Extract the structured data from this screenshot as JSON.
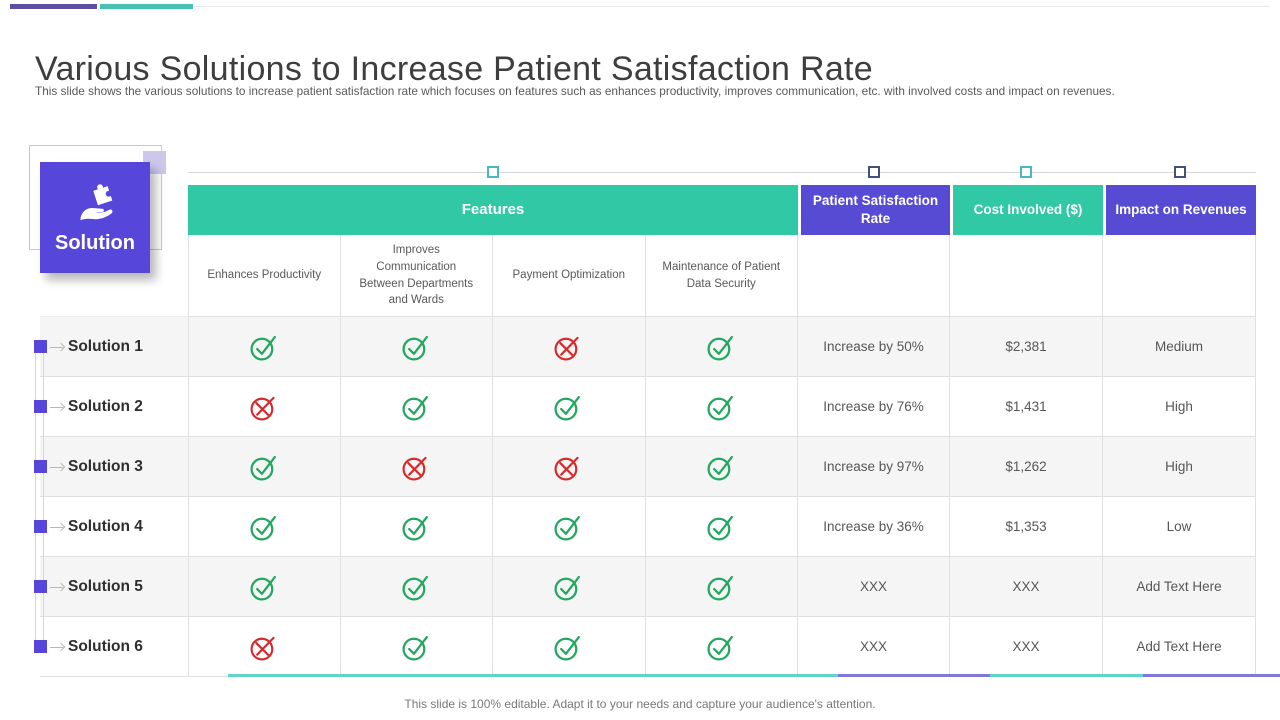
{
  "slide": {
    "title": "Various Solutions to Increase Patient Satisfaction Rate",
    "subtitle": "This slide shows the various solutions to increase patient satisfaction rate which focuses on features such as enhances productivity, improves communication, etc. with involved costs and impact on revenues.",
    "footer": "This slide is 100% editable. Adapt it to your needs and capture your audience's attention."
  },
  "badge": {
    "label": "Solution",
    "icon": "hand-holding-puzzle-icon"
  },
  "icons": {
    "check": "green circled check mark",
    "cross": "red circled x mark",
    "selection_handle": "small square drag handle"
  },
  "colors": {
    "purple": "#574BD3",
    "box-purple": "#5646D9",
    "teal": "#31C8A5",
    "bar-purple": "#5C4FA1",
    "bar-teal": "#46C3B2",
    "green": "#23A65E",
    "red": "#D42A2A",
    "handle-teal": "#49B8C6",
    "handle-navy": "#44507A",
    "line-teal": "#62D2CA",
    "line-purple": "#8177D8",
    "lavender": "#CDC7EC",
    "stripe": "#F5F5F6",
    "border": "#E0E0E0"
  },
  "table": {
    "group_headers": [
      {
        "label": "Features",
        "color": "teal"
      },
      {
        "label": "Patient Satisfaction Rate",
        "color": "purple"
      },
      {
        "label": "Cost Involved ($)",
        "color": "teal"
      },
      {
        "label": "Impact on Revenues",
        "color": "purple"
      }
    ],
    "feature_columns": [
      "Enhances Productivity",
      "Improves Communication Between Departments and Wards",
      "Payment Optimization",
      "Maintenance of Patient Data Security"
    ],
    "rows": [
      {
        "label": "Solution 1",
        "features": [
          true,
          true,
          false,
          true
        ],
        "satisfaction": "Increase by 50%",
        "cost": "$2,381",
        "impact": "Medium"
      },
      {
        "label": "Solution 2",
        "features": [
          false,
          true,
          true,
          true
        ],
        "satisfaction": "Increase by 76%",
        "cost": "$1,431",
        "impact": "High"
      },
      {
        "label": "Solution 3",
        "features": [
          true,
          false,
          false,
          true
        ],
        "satisfaction": "Increase by 97%",
        "cost": "$1,262",
        "impact": "High"
      },
      {
        "label": "Solution 4",
        "features": [
          true,
          true,
          true,
          true
        ],
        "satisfaction": "Increase by 36%",
        "cost": "$1,353",
        "impact": "Low"
      },
      {
        "label": "Solution 5",
        "features": [
          true,
          true,
          true,
          true
        ],
        "satisfaction": "XXX",
        "cost": "XXX",
        "impact": "Add Text Here"
      },
      {
        "label": "Solution 6",
        "features": [
          false,
          true,
          true,
          true
        ],
        "satisfaction": "XXX",
        "cost": "XXX",
        "impact": "Add Text Here"
      }
    ]
  }
}
